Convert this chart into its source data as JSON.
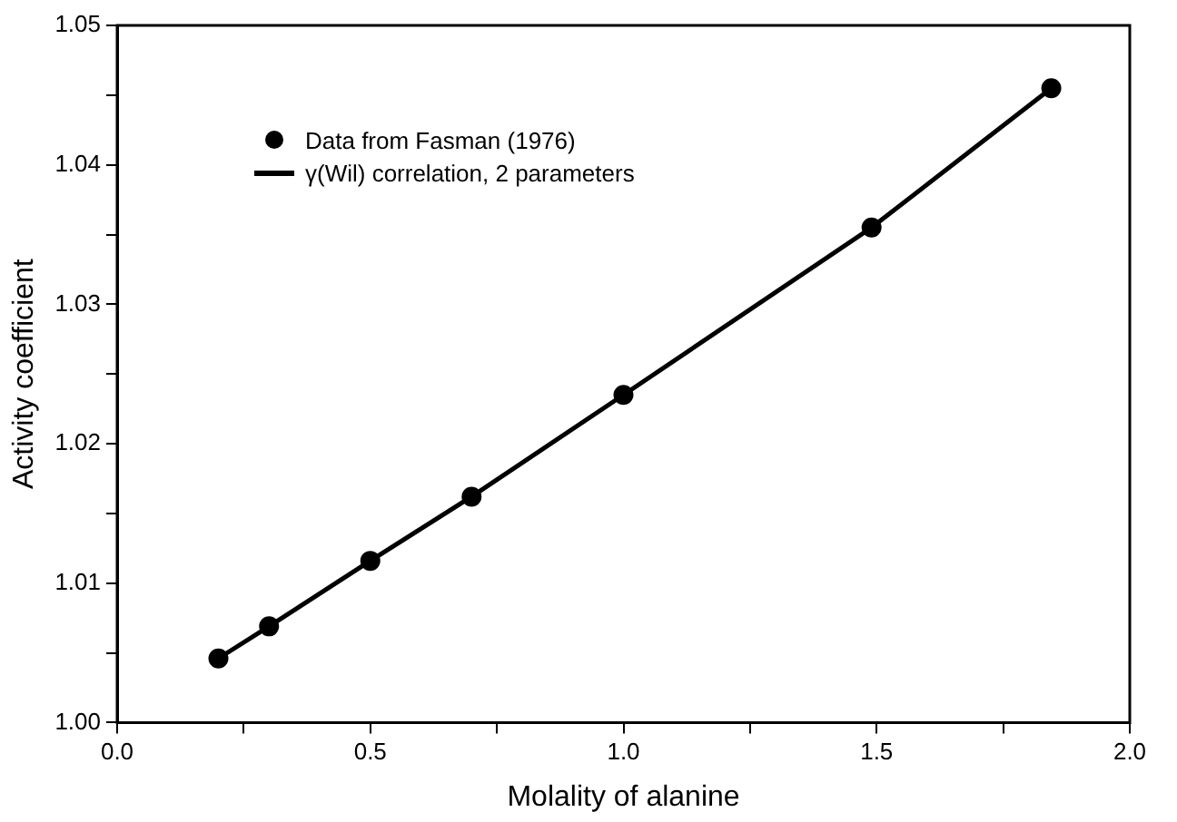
{
  "chart_data": {
    "type": "scatter",
    "xlabel": "Molality of alanine",
    "ylabel": "Activity coefficient",
    "xlim": [
      0,
      2
    ],
    "ylim": [
      1,
      1.05
    ],
    "xticks": [
      {
        "value": 0,
        "label": "0.0"
      },
      {
        "value": 0.25,
        "label": null
      },
      {
        "value": 0.5,
        "label": "0.5"
      },
      {
        "value": 0.75,
        "label": null
      },
      {
        "value": 1,
        "label": "1.0"
      },
      {
        "value": 1.25,
        "label": null
      },
      {
        "value": 1.5,
        "label": "1.5"
      },
      {
        "value": 1.75,
        "label": null
      },
      {
        "value": 2,
        "label": "2.0"
      }
    ],
    "yticks": [
      {
        "value": 1,
        "label": "1.00"
      },
      {
        "value": 1.005,
        "label": null
      },
      {
        "value": 1.01,
        "label": "1.01"
      },
      {
        "value": 1.015,
        "label": null
      },
      {
        "value": 1.02,
        "label": "1.02"
      },
      {
        "value": 1.025,
        "label": null
      },
      {
        "value": 1.03,
        "label": "1.03"
      },
      {
        "value": 1.035,
        "label": null
      },
      {
        "value": 1.04,
        "label": "1.04"
      },
      {
        "value": 1.045,
        "label": null
      },
      {
        "value": 1.05,
        "label": "1.05"
      }
    ],
    "grid": false,
    "legend": "top left",
    "series": [
      {
        "name": "Data from Fasman (1976)",
        "marker": "circle",
        "color": "#000000",
        "x": [
          0.2,
          0.3,
          0.5,
          0.7,
          1.0,
          1.49,
          1.845
        ],
        "values": [
          1.0046,
          1.0069,
          1.0116,
          1.0162,
          1.0235,
          1.0355,
          1.0455
        ]
      },
      {
        "name": "γ(Wil) correlation, 2 parameters",
        "type": "line",
        "marker": "none",
        "line_style": "solid",
        "color": "#000000",
        "x": [
          0.2,
          0.3,
          0.5,
          0.7,
          1.0,
          1.49,
          1.845
        ],
        "values": [
          1.0046,
          1.0069,
          1.0116,
          1.0162,
          1.0235,
          1.0355,
          1.0455
        ]
      }
    ]
  }
}
